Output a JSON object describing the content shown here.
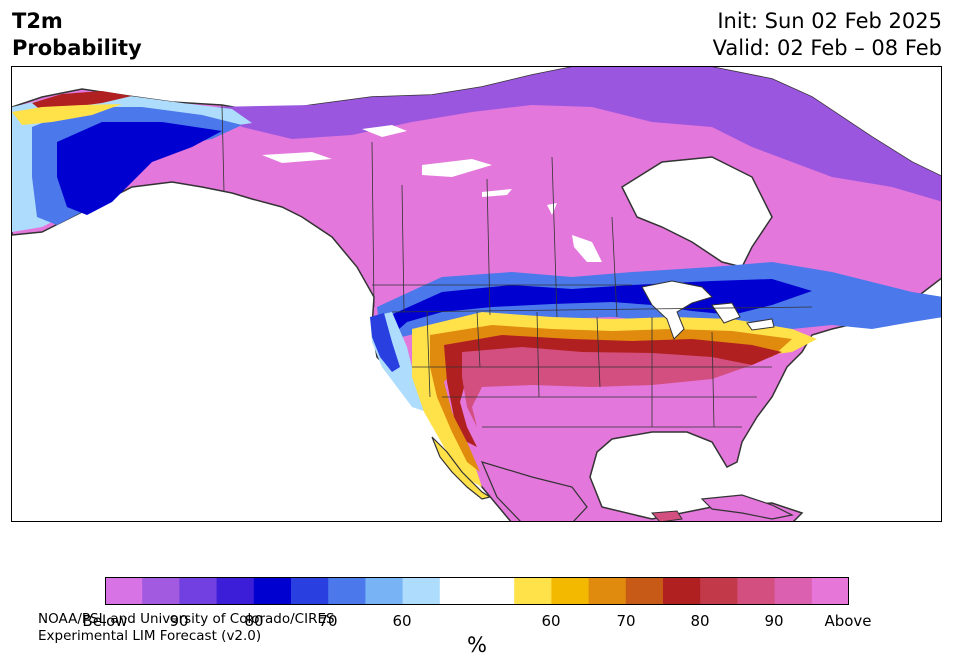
{
  "title": {
    "left_line1": "T2m",
    "left_line2": "Probability",
    "right_line1": "Init: Sun 02 Feb 2025",
    "right_line2": "Valid: 02 Feb – 08 Feb"
  },
  "credit": {
    "line1": "NOAA/PSL and University of Colorado/CIRES",
    "line2": "Experimental LIM Forecast (v2.0)"
  },
  "colorbar": {
    "colors": [
      "#d873e6",
      "#a15ae0",
      "#7240e0",
      "#3d1ed8",
      "#0000d0",
      "#2a3fe0",
      "#4b78ea",
      "#78b4f5",
      "#aedcfd",
      "#ffffff",
      "#ffffff",
      "#ffe14a",
      "#f3b800",
      "#e08a0e",
      "#c85a17",
      "#b02020",
      "#c23a4a",
      "#d34f7f",
      "#dc60b0",
      "#e677d8"
    ],
    "tick_labels": [
      "Below",
      "90",
      "80",
      "70",
      "60",
      "60",
      "70",
      "80",
      "90",
      "Above"
    ],
    "units": "%"
  },
  "map": {
    "palette": {
      "land_below": "#e377db",
      "purple_mid": "#9b56e0",
      "blue_deep": "#0000d0",
      "blue_mid": "#4b78ea",
      "blue_light": "#aedcfd",
      "yellow": "#ffe14a",
      "orange": "#e08a0e",
      "red": "#b02020",
      "pink_red": "#d34f7f",
      "ocean": "#ffffff",
      "border": "#333333"
    }
  }
}
